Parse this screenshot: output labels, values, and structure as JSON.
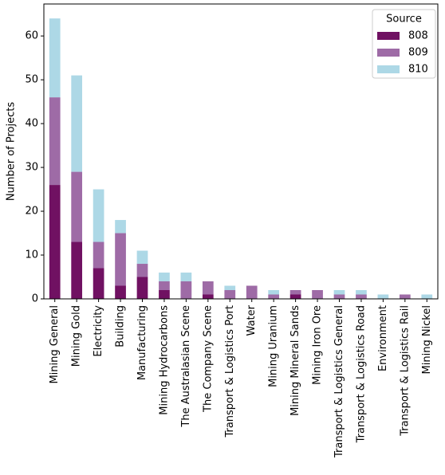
{
  "chart_data": {
    "type": "bar",
    "stacked": true,
    "y_label": "Number of Projects",
    "categories": [
      "Mining General",
      "Mining Gold",
      "Electricity",
      "Building",
      "Manufacturing",
      "Mining Hydrocarbons",
      "The Australasian Scene",
      "The Company Scene",
      "Transport & Logistics Port",
      "Water",
      "Mining Uranium",
      "Mining Mineral Sands",
      "Mining Iron Ore",
      "Transport & Logistics General",
      "Transport & Logistics Road",
      "Environment",
      "Transport & Logistics Rail",
      "Mining Nickel"
    ],
    "series": [
      {
        "name": "808",
        "color": "#701162",
        "values": [
          26,
          13,
          7,
          3,
          5,
          2,
          0,
          1,
          0,
          0,
          0,
          1,
          0,
          0,
          0,
          0,
          0,
          0
        ]
      },
      {
        "name": "809",
        "color": "#9e6ba6",
        "values": [
          20,
          16,
          6,
          12,
          3,
          2,
          4,
          3,
          2,
          3,
          1,
          1,
          2,
          1,
          1,
          0,
          1,
          0
        ]
      },
      {
        "name": "810",
        "color": "#add8e6",
        "values": [
          18,
          22,
          12,
          3,
          3,
          2,
          2,
          0,
          1,
          0,
          1,
          0,
          0,
          1,
          1,
          1,
          0,
          1
        ]
      }
    ],
    "legend_title": "Source",
    "legend_position": "upper right",
    "ylim": [
      0,
      67.3
    ],
    "yticks": [
      0,
      10,
      20,
      30,
      40,
      50,
      60
    ],
    "grid": false
  }
}
